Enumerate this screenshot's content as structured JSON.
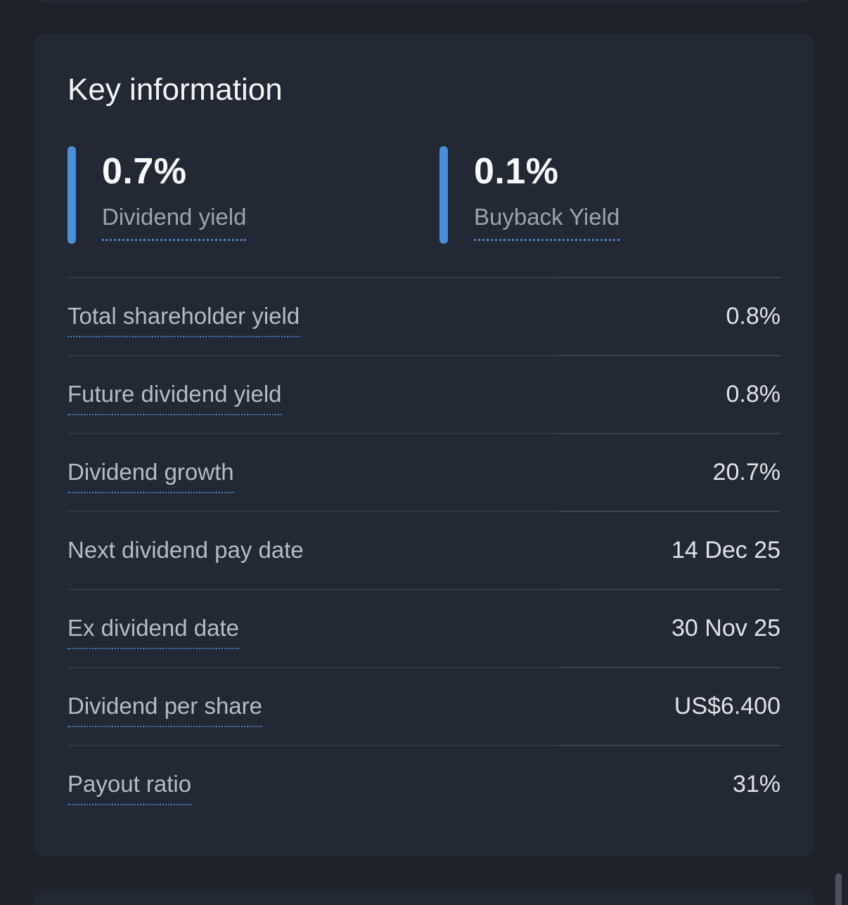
{
  "theme": {
    "page-bg": "#1e222b",
    "card-bg": "#222834",
    "accent-blue": "#4a8fd9",
    "dotted-underline-blue": "#4c80c1",
    "divider": "#303743",
    "divider-bright": "#3a4250",
    "heading-color": "#f3f5f7",
    "stat-value-color": "#f8fafc",
    "stat-label-color": "#9ba3ae",
    "row-label-color": "#b6bcc5",
    "row-value-color": "#dfe3e8",
    "scrollbar-color": "#4d535e"
  },
  "card": {
    "title": "Key information",
    "stats": [
      {
        "value": "0.7%",
        "label": "Dividend yield"
      },
      {
        "value": "0.1%",
        "label": "Buyback Yield"
      }
    ],
    "rows": [
      {
        "label": "Total shareholder yield",
        "value": "0.8%",
        "underline": true
      },
      {
        "label": "Future dividend yield",
        "value": "0.8%",
        "underline": true
      },
      {
        "label": "Dividend growth",
        "value": "20.7%",
        "underline": true
      },
      {
        "label": "Next dividend pay date",
        "value": "14 Dec 25",
        "underline": false
      },
      {
        "label": "Ex dividend date",
        "value": "30 Nov 25",
        "underline": true
      },
      {
        "label": "Dividend per share",
        "value": "US$6.400",
        "underline": true
      },
      {
        "label": "Payout ratio",
        "value": "31%",
        "underline": true
      }
    ]
  }
}
